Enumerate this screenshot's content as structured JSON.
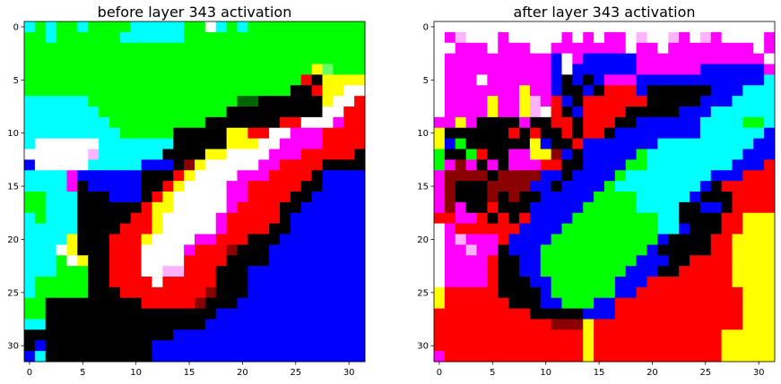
{
  "palette": {
    "0": "#000000",
    "B": "#0000ff",
    "C": "#00ffff",
    "G": "#00ff00",
    "R": "#ff0000",
    "Y": "#ffff00",
    "M": "#ff00ff",
    "W": "#ffffff",
    "P": "#ffb3ff",
    "D": "#8b0000",
    "O": "#ff8c00",
    "N": "#006400",
    "K": "#000080",
    "E": "#00aa00",
    "L": "#66ff66"
  },
  "chart_data": [
    {
      "type": "heatmap",
      "title": "before layer 343 activation",
      "grid": false,
      "xlim": [
        -0.5,
        31.5
      ],
      "ylim": [
        31.5,
        -0.5
      ],
      "xticks": [
        0,
        5,
        10,
        15,
        20,
        25,
        30
      ],
      "yticks": [
        0,
        5,
        10,
        15,
        20,
        25,
        30
      ],
      "rows": [
        "CGCGGCGGGGCCCCCGGWCGCGGGGGGGGGGG",
        "GGCGGGGGGCCCCCCGGGGGGGGGGGGGGGGG",
        "GGGGGGGGGGGGGGGGGGGGGGGGGGGGGGGG",
        "GGGGGGGGGGGGGGGGGGGGGGGGGGGGGGGG",
        "GGGGGGGGGGGGGGGGGGGGGGGGGGGYLGGG",
        "GGGGGGGGGGGGGGGGGGGGGGGGGGR0YYYY",
        "GGGGGGGGGGGGGGGGGGGGGGGGG00RYYWW",
        "CCCCCCGGGGGGGGGGGGGGNN000000YWWR",
        "CCCCCCCGGGGGGGGGGGG000000000WWRR",
        "CCCCCCCCGGGGGGGGG0000000RRWWWMRR",
        "CCCCCCCCCGGGGG00000YYRRWWMMMRRRR",
        "CWWWWWWCCCCCCC00000YYYWWMMMMRRRR",
        "WWWWWWPCCCCCC0000YYWWWWMMMRRRRR0",
        "BWWWWWCCCCCBBB0DYWWWWWMMRRRR0000",
        "CCCCMBBBBBB000RYWWWWMMMRRRR0BBBB",
        "CCCCM0BBBBB00RYWWWWMMRRRRR00BBBB",
        "GGCCC000BBB0RYWWWWWMMRRRR00BBBBB",
        "GGCCC000000RYYWWWWWMRRRR00BBBBBB",
        "CGCCC00000RRYWWWWWMRRRRR0BBBBBBB",
        "CCCCC0000RRRYWWWWWMRRRR00BBBBBBB",
        "CCCCY000RRRYWWWWMMRRR000BBBBBBBB",
        "CCCWY000RRRWWWWMRRRD000BBBBBBBBB",
        "CCCGWY00RRRWWWWRRRR0000BBBBBBBBB",
        "CCCGGG00RRRWWPPRRR000BBBBBBBBBBB",
        "CGGGGG00RRRRWRRRRR000BBBBBBBBBBB",
        "CGGGGG000RRRRRRRRD000BBBBBBBBBBB",
        "GG000000000RRRRRD000BBBBBBBBBBBB",
        "GG0000000000000000BBBBBBBBBBBBBB",
        "CC000000000000000BBBBBBBBBBBBBBB",
        "00000000000000BBBBBBBBBBBBBBBBBB",
        "0B0000000000BBBBBBBBBBBBBBBBBBBB",
        "BC0000000000BBBBBBBBBBBBBBBBBBBB"
      ]
    },
    {
      "type": "heatmap",
      "title": "after layer 343 activation",
      "grid": false,
      "xlim": [
        -0.5,
        31.5
      ],
      "ylim": [
        31.5,
        -0.5
      ],
      "xticks": [
        0,
        5,
        10,
        15,
        20,
        25,
        30
      ],
      "yticks": [
        0,
        5,
        10,
        15,
        20,
        25,
        30
      ],
      "rows": [
        "WWWWWWWWWWWWWWWWWWWWWWWWWWWWWWWW",
        "WMPWWWMWWWWWMWMWMMWPWWPMWPMWWWWM",
        "WWMMMWMMMWWMMMMMMMWMMWMMMMMMMMWM",
        "WMMMMMMMMMMBWMBBBBBMMMMMMMMMMMMW",
        "WMMMMMMMMMMBWBBBBBBMMMMMMBBBBBBM",
        "WMMMWMMMMMMB0B0BMMMBBBBBBBBBBBBC",
        "WMMMMMMMYMMB00B0RRRB000000BBBCCC",
        "WMMMMYMMYPMRB0RRRRRR00000BBBCCCC",
        "WMMMMYMMYPWR0BRRRR00000BBBCCCCCC",
        "MMYM0000M00RR0RRR00BBBBBBCCCCGGC",
        "Y000000R0R00R0RR0BBBBBBBBCCCCCCB",
        "YBG000000YB00RBBBBBBBCCCCCCCCCBB",
        "G00GR00MMYYDB0BBBBBGCCCCCCCCCBBB",
        "GMDM0M0MMMRR00BBBBGGCCCCCCCCBBBR",
        "MDDDD0DDDDBB0BBBBGCCCCCCCCBBBRRR",
        "MD000DDDDBB0BBBBGCCCCCCCCB0RRRRR",
        "MD000D0D00BBBBBGGGGCCCCCB000RRRR",
        "MDM00R000BBBBBGGGGGCCCC00BB0RRRR",
        "RRMMR0R0RBBBBGGGGGGGGCC0000RRYYY",
        "WMRRRRRRBBBBGGGGGGGGGCCB000RRYYY",
        "WMPMMMRBBBBGGGGGGGGGGB0000RRYYYY",
        "WMMPMM0BBBGGGGGGGGGGB00000RRYYYY",
        "WMMMMR00BBGGGGGGGGGBBB00RRRRYYYY",
        "WMMMMR00BBGGGGGGGGBBB00RRRRRYYYY",
        "WMMMMR000BBGGGGGGBBBRRRRRRRRYYYY",
        "YRRRRR0000BGGGGGGBBRRRRRRRRRRYYY",
        "YRRRRRR000BBGGGBBRRRRRRRRRRRRYYY",
        "RRRRRRRRR00000BBBRRRRRRRRRRRRYYY",
        "RRRRRRRRRRRDDDYRRRRRRRRRRRRRRYYY",
        "RRRRRRRRRRRRRRYRRRRRRRRRRRRYYYYY",
        "RRRRRRRRRRRRRRYRRRRRRRRRRRRYYYYY",
        "MRRRRRRRRRRRRRYRRRRRRRRRRRRYYYYY"
      ]
    }
  ]
}
